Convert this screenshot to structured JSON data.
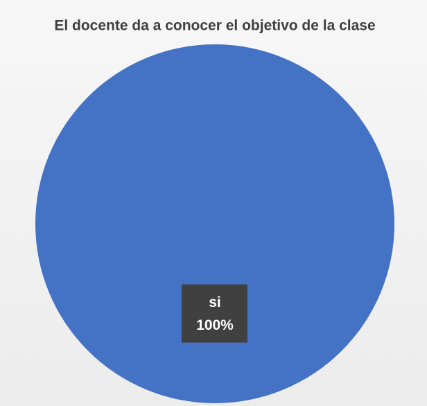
{
  "chart_data": {
    "type": "pie",
    "title": "El docente da a conocer el objetivo de la clase",
    "categories": [
      "si"
    ],
    "values": [
      100
    ],
    "value_labels": [
      "100%"
    ],
    "colors": [
      "#4472c4"
    ]
  }
}
